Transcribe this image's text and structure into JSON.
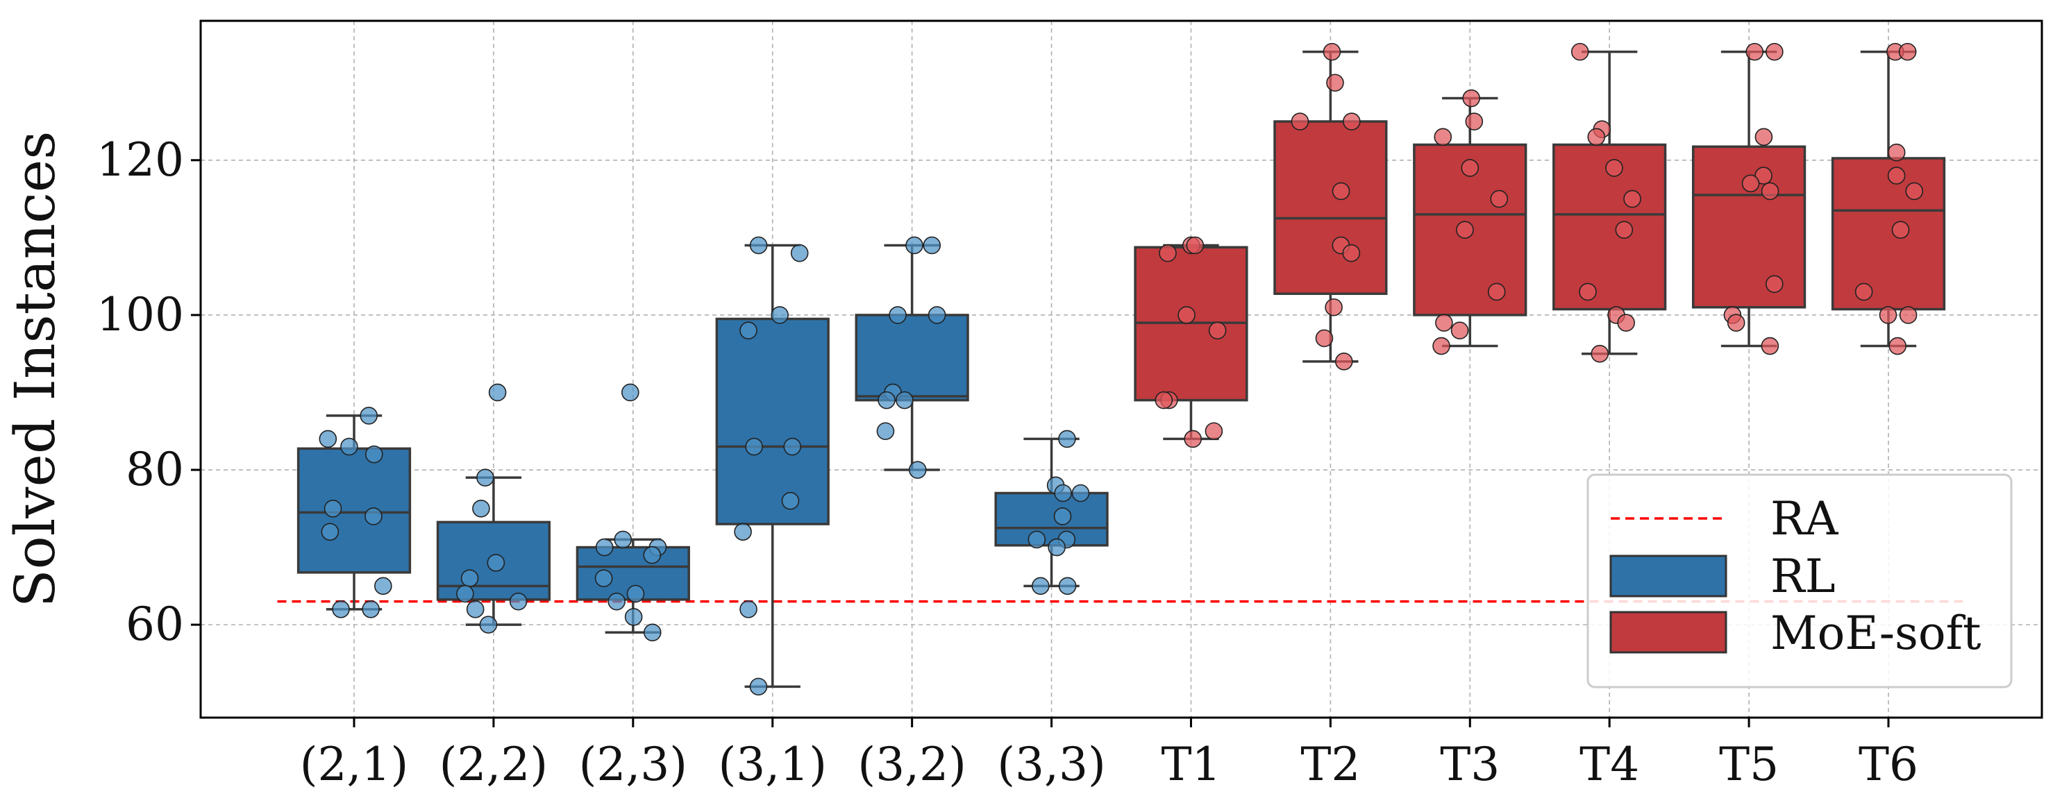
{
  "chart_data": {
    "type": "boxplot",
    "title": "",
    "xlabel": "",
    "ylabel": "Solved Instances",
    "ylim": [
      48,
      138
    ],
    "yticks": [
      60,
      80,
      100,
      120
    ],
    "grid": true,
    "legend_position": "lower-right",
    "categories": [
      "(2,1)",
      "(2,2)",
      "(2,3)",
      "(3,1)",
      "(3,2)",
      "(3,3)",
      "T1",
      "T2",
      "T3",
      "T4",
      "T5",
      "T6"
    ],
    "reference_line": {
      "name": "RA",
      "value": 63,
      "color": "#ff0000"
    },
    "series": [
      {
        "name": "RL",
        "color": "#2e72a8",
        "point_color": "#4f93c8",
        "categories": [
          "(2,1)",
          "(2,2)",
          "(2,3)",
          "(3,1)",
          "(3,2)",
          "(3,3)"
        ],
        "boxes": [
          {
            "whisker_low": 62,
            "q1": 66.75,
            "median": 74.5,
            "q3": 82.75,
            "whisker_high": 87
          },
          {
            "whisker_low": 60,
            "q1": 63.25,
            "median": 65,
            "q3": 73.25,
            "whisker_high": 79
          },
          {
            "whisker_low": 59,
            "q1": 63.25,
            "median": 67.5,
            "q3": 70,
            "whisker_high": 71
          },
          {
            "whisker_low": 52,
            "q1": 73,
            "median": 83,
            "q3": 99.5,
            "whisker_high": 109
          },
          {
            "whisker_low": 80,
            "q1": 89,
            "median": 89.5,
            "q3": 100,
            "whisker_high": 109
          },
          {
            "whisker_low": 65,
            "q1": 70.25,
            "median": 72.5,
            "q3": 77,
            "whisker_high": 84
          }
        ],
        "points": [
          [
            87,
            84,
            83,
            82,
            75,
            74,
            72,
            65,
            62,
            62
          ],
          [
            90,
            79,
            75,
            68,
            66,
            64,
            63,
            62,
            60
          ],
          [
            90,
            71,
            70,
            70,
            69,
            66,
            64,
            63,
            61,
            59
          ],
          [
            109,
            108,
            100,
            98,
            83,
            83,
            76,
            72,
            62,
            52
          ],
          [
            109,
            109,
            100,
            100,
            90,
            89,
            89,
            85,
            80
          ],
          [
            84,
            78,
            77,
            77,
            74,
            71,
            71,
            70,
            65,
            65
          ]
        ]
      },
      {
        "name": "MoE-soft",
        "color": "#c03a3e",
        "point_color": "#e0585c",
        "categories": [
          "T1",
          "T2",
          "T3",
          "T4",
          "T5",
          "T6"
        ],
        "boxes": [
          {
            "whisker_low": 84,
            "q1": 89,
            "median": 99,
            "q3": 108.75,
            "whisker_high": 109
          },
          {
            "whisker_low": 94,
            "q1": 102.75,
            "median": 112.5,
            "q3": 125,
            "whisker_high": 134
          },
          {
            "whisker_low": 96,
            "q1": 100,
            "median": 113,
            "q3": 122,
            "whisker_high": 128
          },
          {
            "whisker_low": 95,
            "q1": 100.75,
            "median": 113,
            "q3": 122,
            "whisker_high": 134
          },
          {
            "whisker_low": 96,
            "q1": 101,
            "median": 115.5,
            "q3": 121.75,
            "whisker_high": 134
          },
          {
            "whisker_low": 96,
            "q1": 100.75,
            "median": 113.5,
            "q3": 120.25,
            "whisker_high": 134
          }
        ],
        "points": [
          [
            109,
            109,
            108,
            100,
            98,
            89,
            89,
            85,
            84
          ],
          [
            134,
            130,
            125,
            125,
            116,
            109,
            108,
            101,
            97,
            94
          ],
          [
            128,
            125,
            123,
            119,
            115,
            111,
            103,
            99,
            98,
            96
          ],
          [
            134,
            124,
            123,
            119,
            115,
            111,
            103,
            100,
            99,
            95
          ],
          [
            134,
            134,
            123,
            118,
            117,
            116,
            104,
            100,
            99,
            96
          ],
          [
            134,
            134,
            121,
            118,
            116,
            111,
            103,
            100,
            100,
            96
          ]
        ]
      }
    ]
  }
}
